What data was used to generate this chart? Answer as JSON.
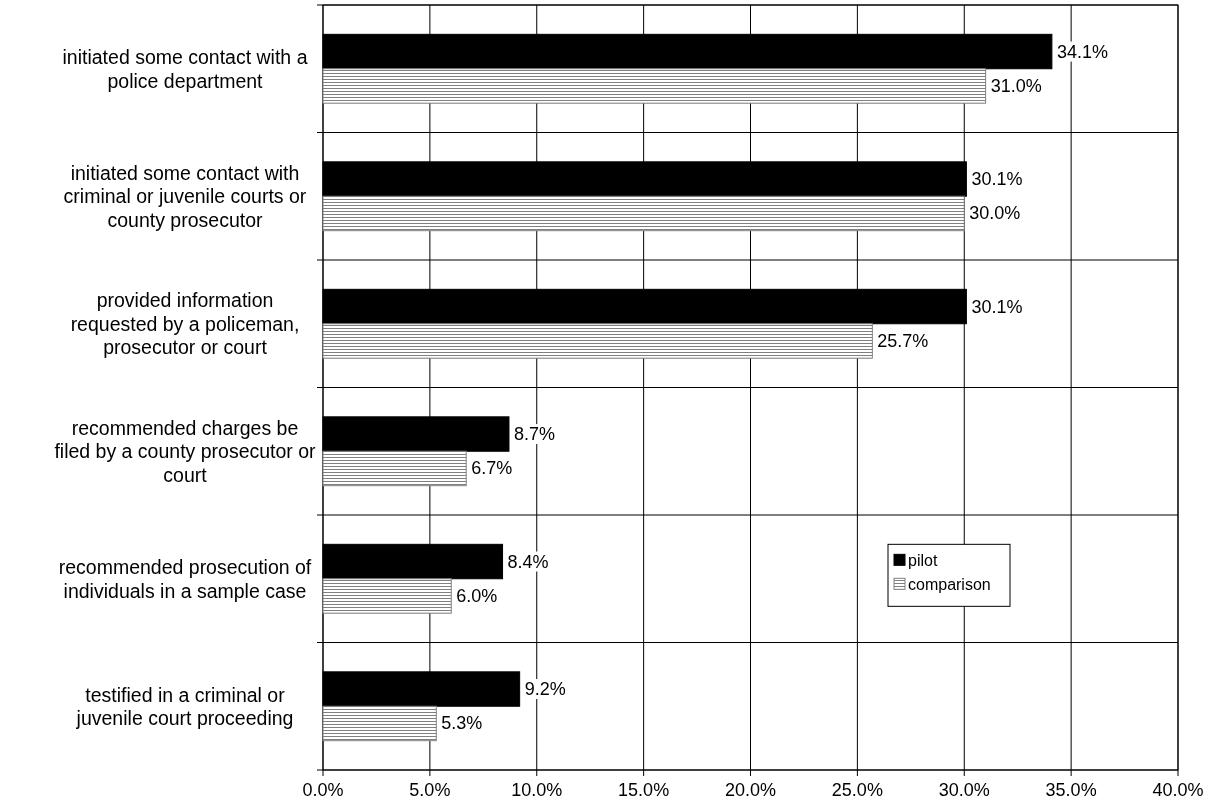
{
  "chart_data": {
    "type": "bar",
    "orientation": "horizontal",
    "categories": [
      "initiated some contact with a police department",
      "initiated some contact with criminal or juvenile courts or county prosecutor",
      "provided information requested by a policeman, prosecutor or court",
      "recommended charges be filed by a county prosecutor or court",
      "recommended prosecution of individuals in a sample case",
      "testified in a criminal or juvenile court proceeding"
    ],
    "series": [
      {
        "name": "pilot",
        "color": "#000000",
        "values": [
          34.1,
          30.1,
          30.1,
          8.7,
          8.4,
          9.2
        ],
        "value_labels": [
          "34.1%",
          "30.1%",
          "30.1%",
          "8.7%",
          "8.4%",
          "9.2%"
        ]
      },
      {
        "name": "comparison",
        "color": "#808080",
        "values": [
          31.0,
          30.0,
          25.7,
          6.7,
          6.0,
          5.3
        ],
        "value_labels": [
          "31.0%",
          "30.0%",
          "25.7%",
          "6.7%",
          "6.0%",
          "5.3%"
        ]
      }
    ],
    "xlim": [
      0,
      40
    ],
    "xticks": [
      {
        "value": 0,
        "label": "0.0%"
      },
      {
        "value": 5,
        "label": "5.0%"
      },
      {
        "value": 10,
        "label": "10.0%"
      },
      {
        "value": 15,
        "label": "15.0%"
      },
      {
        "value": 20,
        "label": "20.0%"
      },
      {
        "value": 25,
        "label": "25.0%"
      },
      {
        "value": 30,
        "label": "30.0%"
      },
      {
        "value": 35,
        "label": "35.0%"
      },
      {
        "value": 40,
        "label": "40.0%"
      }
    ],
    "grid": true,
    "legend": "right"
  }
}
